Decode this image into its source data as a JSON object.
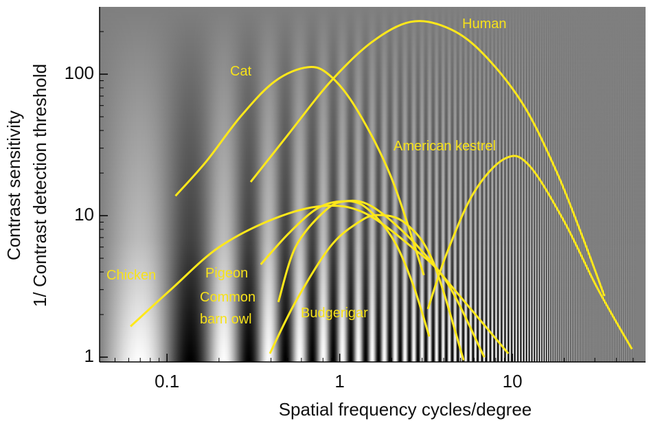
{
  "chart_data": {
    "type": "line",
    "xlabel": "Spatial frequency cycles/degree",
    "ylabel": [
      "Contrast sensitivity",
      "1/ Contrast detection threshold"
    ],
    "log_x": true,
    "log_y": true,
    "xlim": [
      0.0407,
      59
    ],
    "ylim": [
      0.925,
      299
    ],
    "xticks": [
      0.1,
      1,
      10
    ],
    "yticks": [
      1,
      10,
      100
    ],
    "series": [
      {
        "name": "Human",
        "color": "#ffe81a",
        "x": [
          0.305,
          0.506,
          0.876,
          1.52,
          2.56,
          4.15,
          6.56,
          11.4,
          18,
          25.9,
          34.1
        ],
        "values": [
          17.3,
          37.8,
          87.5,
          167,
          234,
          214,
          145,
          62.5,
          20.5,
          6.7,
          2.7
        ]
      },
      {
        "name": "Cat",
        "color": "#ffe81a",
        "x": [
          0.112,
          0.169,
          0.266,
          0.421,
          0.653,
          0.876,
          1.26,
          2.0,
          3.07
        ],
        "values": [
          13.8,
          24.2,
          50,
          89,
          112,
          98,
          56,
          18.3,
          3.8
        ]
      },
      {
        "name": "American kestrel",
        "color": "#ffe81a",
        "x": [
          3.24,
          4.15,
          5.99,
          9.04,
          12.4,
          19.7,
          31.1,
          49.2
        ],
        "values": [
          2.19,
          5.35,
          14.6,
          25.3,
          22.9,
          9.35,
          3.06,
          1.14
        ]
      },
      {
        "name": "Chicken",
        "color": "#ffe81a",
        "x": [
          0.0615,
          0.107,
          0.2,
          0.421,
          0.8,
          1.38,
          2.62,
          4.15,
          6.87
        ],
        "values": [
          1.65,
          3.06,
          5.98,
          9.56,
          11.7,
          10.5,
          5.98,
          3.42,
          1.0
        ]
      },
      {
        "name": "Pigeon",
        "color": "#ffe81a",
        "x": [
          0.349,
          0.506,
          0.729,
          1.0,
          1.38,
          2.0,
          2.62,
          3.3
        ],
        "values": [
          4.52,
          7.48,
          11.1,
          12.6,
          11.7,
          7.07,
          3.42,
          1.4
        ]
      },
      {
        "name": "Common barn owl",
        "color": "#ffe81a",
        "x": [
          0.441,
          0.554,
          0.8,
          1.05,
          1.52,
          2.62,
          4.55,
          9.47
        ],
        "values": [
          2.45,
          5.98,
          10.5,
          12.6,
          11.7,
          6.7,
          3.06,
          1.06
        ]
      },
      {
        "name": "Budgerigar",
        "color": "#ffe81a",
        "x": [
          0.394,
          0.554,
          0.876,
          1.26,
          1.66,
          2.4,
          3.46,
          5.22
        ],
        "values": [
          1.06,
          2.45,
          5.98,
          8.84,
          10.1,
          8.84,
          4.78,
          0.95
        ]
      }
    ]
  }
}
